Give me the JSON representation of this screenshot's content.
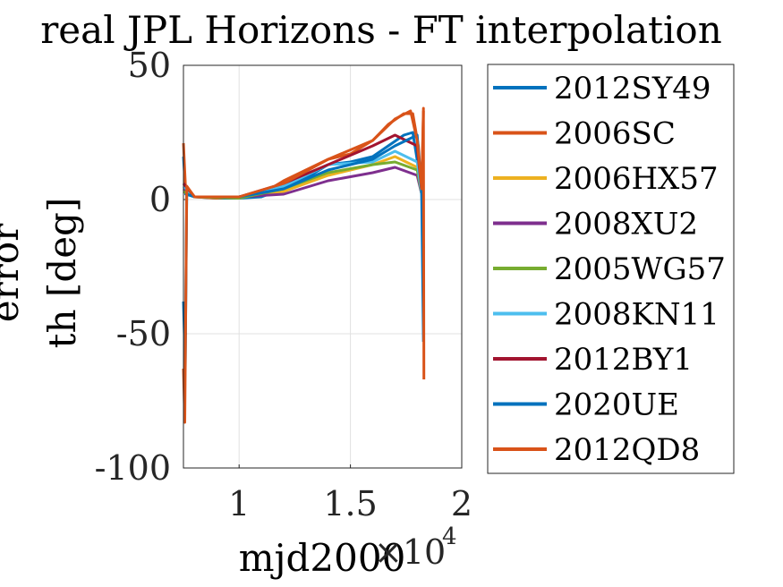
{
  "chart_data": {
    "type": "line",
    "title": "real JPL Horizons - FT interpolation",
    "xlabel": "mjd2000",
    "xlabel_multiplier": "×10",
    "xlabel_exponent": "4",
    "ylabel_lines": [
      "error",
      "th [deg]"
    ],
    "xlim": [
      7500,
      20000
    ],
    "ylim": [
      -100,
      50
    ],
    "xticks": [
      10000,
      15000,
      20000
    ],
    "xtick_labels": [
      "1",
      "1.5",
      "2"
    ],
    "yticks": [
      -100,
      -50,
      0,
      50
    ],
    "ytick_labels": [
      "-100",
      "-50",
      "0",
      "50"
    ],
    "grid": true,
    "legend_position": "outside-right",
    "series": [
      {
        "name": "2012SY49",
        "color": "#0072BD",
        "x": [
          7500,
          7600,
          8000,
          9000,
          10000,
          11000,
          12000,
          13000,
          14000,
          15000,
          16000,
          16700,
          17400,
          17800,
          18050,
          18200,
          18280
        ],
        "y": [
          16,
          2,
          1,
          0.5,
          0.5,
          1,
          4,
          8,
          13,
          14,
          16,
          20,
          24,
          25,
          12,
          2,
          -53
        ]
      },
      {
        "name": "2006SC",
        "color": "#D95319",
        "x": [
          7500,
          7600,
          8000,
          9000,
          10000,
          11000,
          12000,
          13000,
          14000,
          15000,
          16000,
          16700,
          17400,
          17800,
          18050,
          18200,
          18280
        ],
        "y": [
          21,
          3,
          1,
          0.5,
          1,
          2,
          7,
          11,
          15,
          17,
          22,
          28,
          32,
          32,
          20,
          3,
          33
        ]
      },
      {
        "name": "2006HX57",
        "color": "#EDB120",
        "x": [
          7500,
          8000,
          10000,
          12000,
          14000,
          16000,
          17000,
          18000,
          18200
        ],
        "y": [
          3,
          1,
          1,
          3,
          9,
          13,
          16,
          12,
          2
        ]
      },
      {
        "name": "2008XU2",
        "color": "#7E2F8E",
        "x": [
          7500,
          8000,
          10000,
          12000,
          14000,
          16000,
          17000,
          18000,
          18200
        ],
        "y": [
          4,
          1,
          1,
          2,
          7,
          10,
          12,
          9,
          2
        ]
      },
      {
        "name": "2005WG57",
        "color": "#77AC30",
        "x": [
          7500,
          8000,
          10000,
          12000,
          14000,
          16000,
          17000,
          18000,
          18200
        ],
        "y": [
          3,
          1,
          0.5,
          4,
          10,
          13,
          14,
          11,
          2
        ]
      },
      {
        "name": "2008KN11",
        "color": "#4DBEEE",
        "x": [
          7500,
          8000,
          10000,
          12000,
          14000,
          16000,
          17000,
          18000,
          18200
        ],
        "y": [
          5,
          1,
          1,
          5,
          13,
          14,
          18,
          14,
          2
        ]
      },
      {
        "name": "2012BY1",
        "color": "#A2142F",
        "x": [
          7500,
          8000,
          10000,
          12000,
          14000,
          16000,
          17000,
          18000,
          18200
        ],
        "y": [
          6,
          1,
          1,
          6,
          13,
          20,
          24,
          20,
          3
        ]
      },
      {
        "name": "2020UE",
        "color": "#0072BD",
        "x": [
          7500,
          7580,
          7650,
          8000,
          10000,
          12000,
          14000,
          16000,
          17000,
          18000,
          18200,
          18280
        ],
        "y": [
          -38,
          -63,
          2,
          1,
          1,
          4,
          11,
          15,
          20,
          24,
          3,
          -18
        ]
      },
      {
        "name": "2012QD8",
        "color": "#D95319",
        "x": [
          7500,
          7560,
          7650,
          8000,
          10000,
          12000,
          14000,
          16000,
          17000,
          17700,
          18000,
          18200,
          18280,
          18300
        ],
        "y": [
          -63,
          -83,
          5,
          1,
          1,
          6,
          15,
          22,
          30,
          33,
          22,
          4,
          34,
          -67
        ]
      }
    ]
  }
}
